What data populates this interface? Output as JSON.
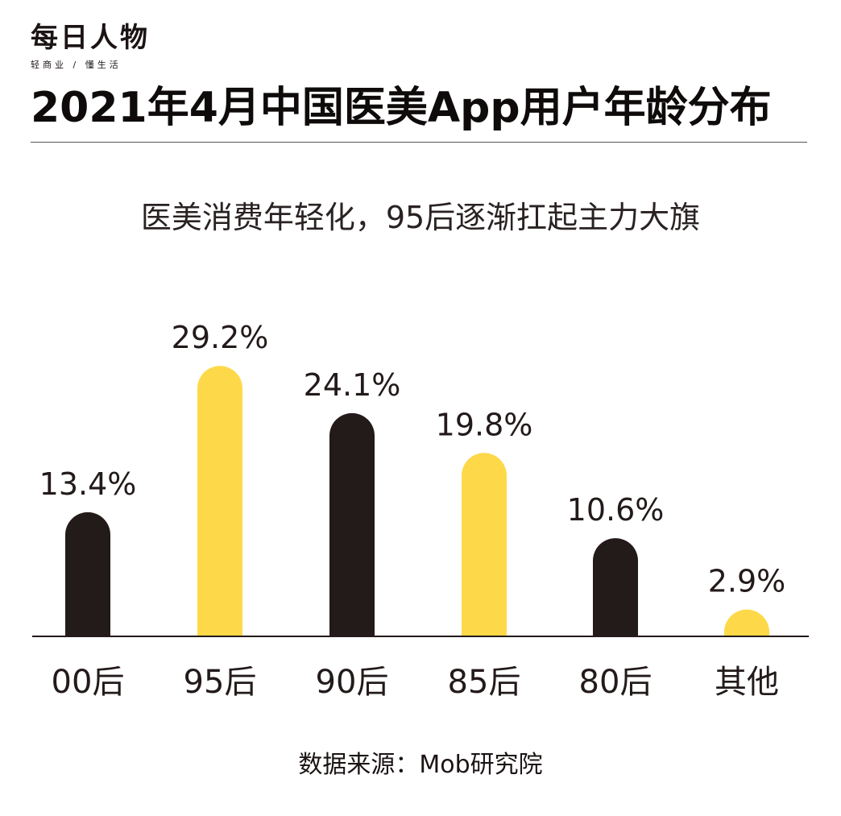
{
  "logo": {
    "main": "每日人物",
    "sub": "轻商业 / 懂生活"
  },
  "title": "2021年4月中国医美App用户年龄分布",
  "subtitle": "医美消费年轻化，95后逐渐扛起主力大旗",
  "source": "数据来源：Mob研究院",
  "colors": {
    "dark": "#231a1a",
    "yellow": "#fdd94a",
    "axis": "#231a1a"
  },
  "chart_data": {
    "type": "bar",
    "categories": [
      "00后",
      "95后",
      "90后",
      "85后",
      "80后",
      "其他"
    ],
    "values": [
      13.4,
      29.2,
      24.1,
      19.8,
      10.6,
      2.9
    ],
    "value_labels": [
      "13.4%",
      "29.2%",
      "24.1%",
      "19.8%",
      "10.6%",
      "2.9%"
    ],
    "bar_colors": [
      "#231a1a",
      "#fdd94a",
      "#231a1a",
      "#fdd94a",
      "#231a1a",
      "#fdd94a"
    ],
    "unit": "%",
    "ylim": [
      0,
      30
    ],
    "grid": false,
    "legend": "none"
  }
}
